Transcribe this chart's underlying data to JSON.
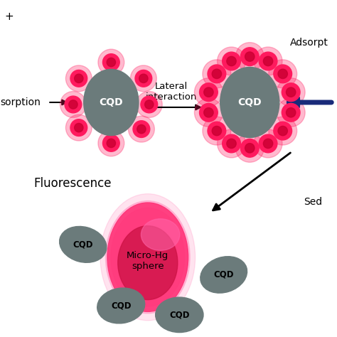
{
  "background_color": "#ffffff",
  "cqd_color": "#6b7b7b",
  "dot_outer": "#ff1a5e",
  "dot_center": "#cc0033",
  "dot_highlight": "#ff88aa",
  "arrow_color": "#000000",
  "blue_arrow_color": "#1a2b7a",
  "text_color": "#000000",
  "hg_pink_outer": "#ff66aa",
  "hg_pink_mid": "#ff3377",
  "hg_red_inner": "#cc1144",
  "label_lateral": "Lateral\ninteraction",
  "label_adsorption_left": "sorption",
  "label_plus": "+",
  "label_fluorescence": "Fluorescence",
  "label_adsorpt": "Adsorpt",
  "label_sed": "Sed",
  "label_cqd": "CQD",
  "label_micro_hg": "Micro-Hg\nsphere",
  "figw": 4.74,
  "figh": 4.74,
  "dpi": 100
}
